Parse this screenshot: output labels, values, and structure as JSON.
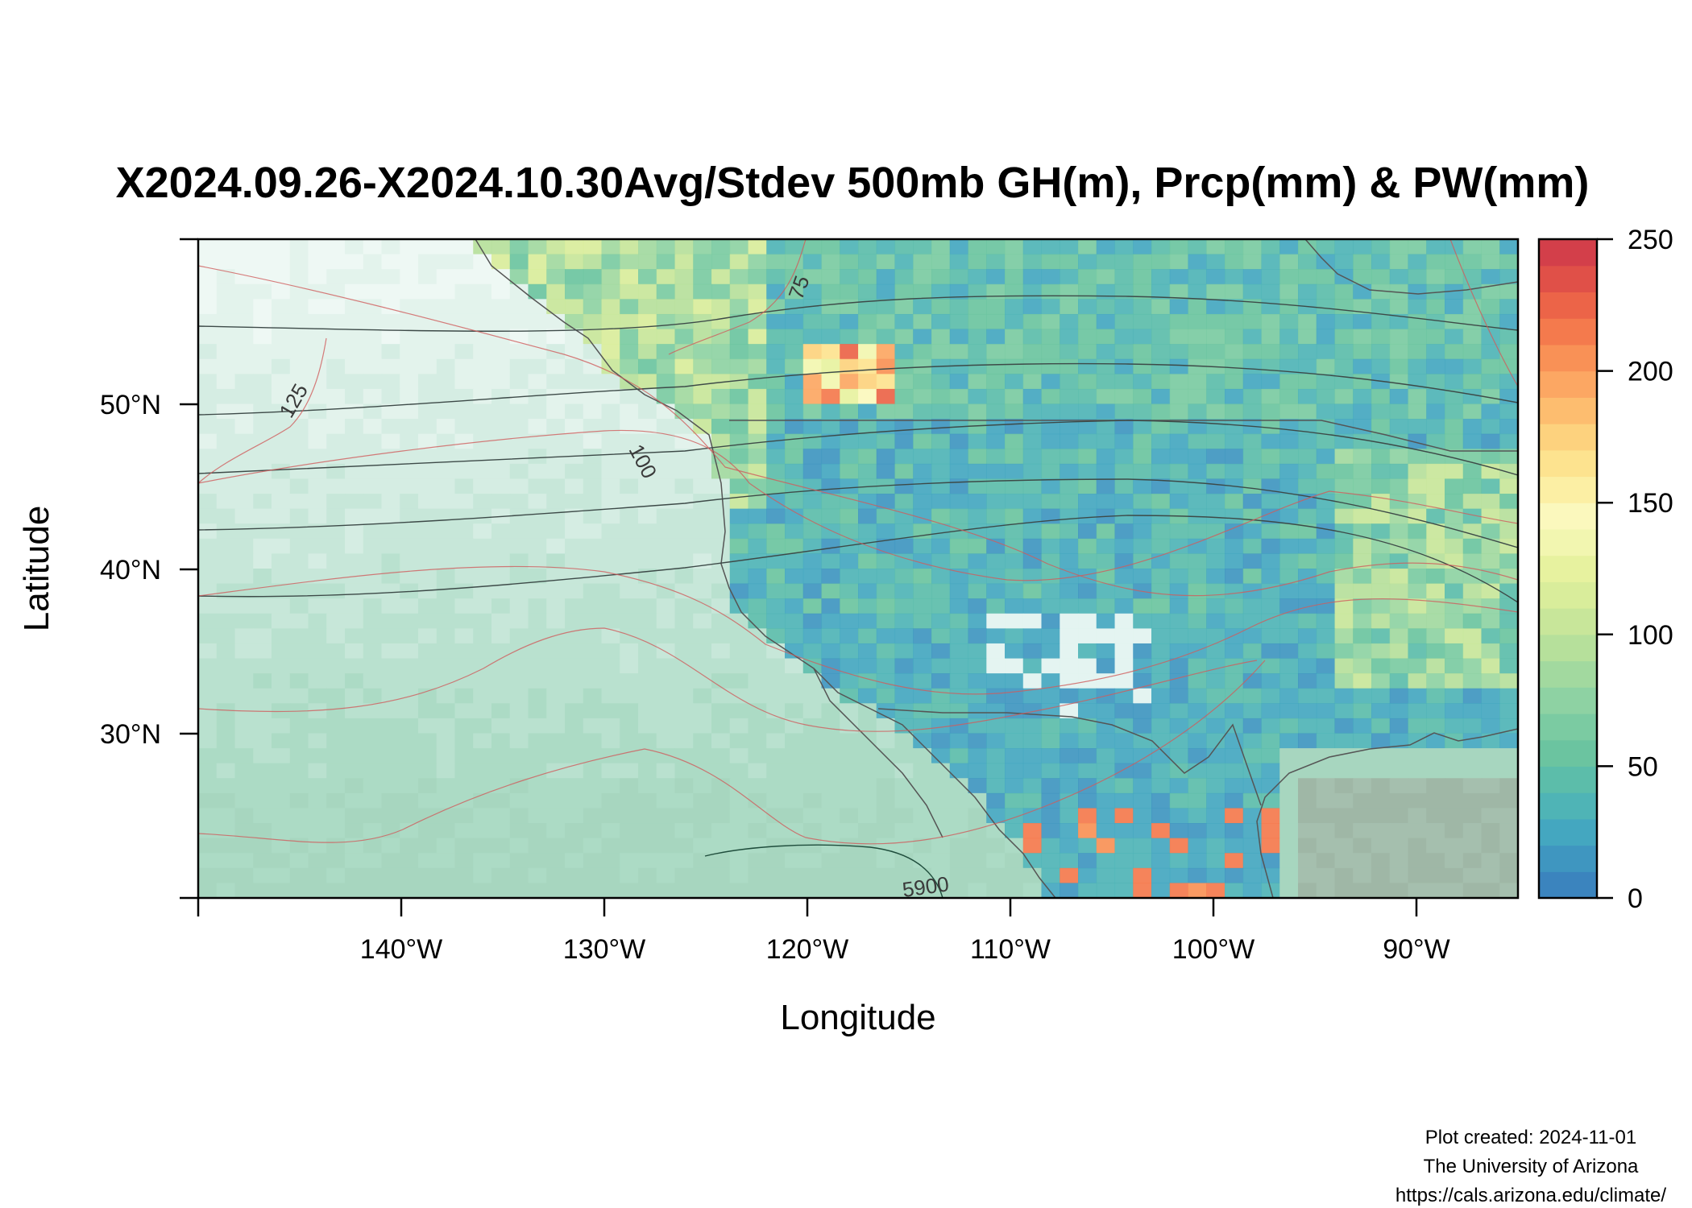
{
  "title": "X2024.09.26-X2024.10.30Avg/Stdev 500mb GH(m), Prcp(mm) & PW(mm)",
  "xlabel": "Longitude",
  "ylabel": "Latitude",
  "x_ticks": [
    "140°W",
    "130°W",
    "120°W",
    "110°W",
    "100°W",
    "90°W"
  ],
  "y_ticks": [
    "50°N",
    "40°N",
    "30°N"
  ],
  "colorbar": {
    "ticks": [
      "0",
      "50",
      "100",
      "150",
      "200",
      "250"
    ],
    "range": [
      0,
      250
    ],
    "colors": [
      "#3b84be",
      "#3f96c0",
      "#44a7c0",
      "#4fb4b6",
      "#5cbdaa",
      "#6bc4a0",
      "#7bcba2",
      "#8ed2a3",
      "#a2d99f",
      "#b6e09b",
      "#c8e69a",
      "#d9ed9b",
      "#e7f29f",
      "#f2f6b0",
      "#fbf8bd",
      "#fcefa4",
      "#fde38f",
      "#fdd27e",
      "#fdbd6f",
      "#fca763",
      "#f99156",
      "#f47a4d",
      "#ec6448",
      "#e05048",
      "#d33f4a"
    ]
  },
  "contour_labels": [
    "75",
    "125",
    "100",
    "5900"
  ],
  "footer": {
    "created": "Plot created: 2024-11-01",
    "org": "The University of Arizona",
    "url": "https://cals.arizona.edu/climate/"
  },
  "map_extent": {
    "lon": [
      -150,
      -85
    ],
    "lat": [
      20,
      60
    ]
  },
  "chart_data": {
    "type": "heatmap",
    "title": "X2024.09.26-X2024.10.30Avg/Stdev 500mb GH(m), Prcp(mm) & PW(mm)",
    "xlabel": "Longitude",
    "ylabel": "Latitude",
    "xlim": [
      -150,
      -85
    ],
    "ylim": [
      20,
      60
    ],
    "colorbar_range": [
      0,
      250
    ],
    "regions": [
      {
        "lon": [
          -150,
          -125
        ],
        "lat": [
          20,
          60
        ],
        "value": 55
      },
      {
        "lon": [
          -125,
          -117
        ],
        "lat": [
          42,
          58
        ],
        "value": 70
      },
      {
        "lon": [
          -117,
          -100
        ],
        "lat": [
          35,
          56
        ],
        "value": 20
      },
      {
        "lon": [
          -100,
          -85
        ],
        "lat": [
          26,
          58
        ],
        "value": 28
      },
      {
        "lon": [
          -105,
          -95
        ],
        "lat": [
          20,
          30
        ],
        "value": 30
      },
      {
        "lon": [
          -120,
          -117
        ],
        "lat": [
          51,
          53
        ],
        "value": 200
      }
    ]
  }
}
